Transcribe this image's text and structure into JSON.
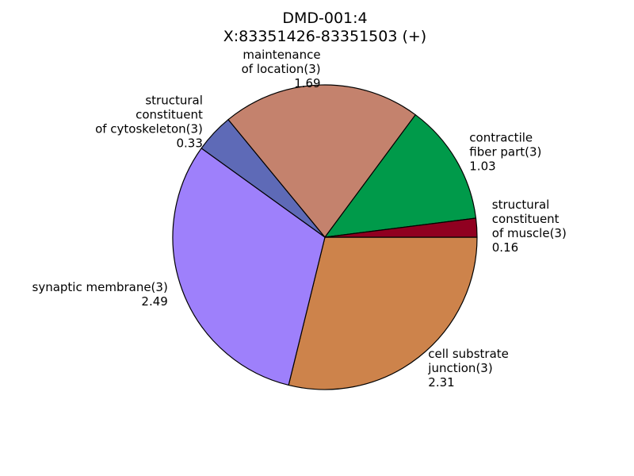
{
  "chart_data": {
    "type": "pie",
    "title_lines": [
      "DMD-001:4",
      "X:83351426-83351503 (+)"
    ],
    "slices": [
      {
        "label_lines": [
          "cell substrate",
          "junction(3)"
        ],
        "value": 2.31,
        "value_text": "2.31",
        "color": "#cd834b"
      },
      {
        "label_lines": [
          "synaptic membrane(3)"
        ],
        "value": 2.49,
        "value_text": "2.49",
        "color": "#9e80fb"
      },
      {
        "label_lines": [
          "structural",
          "constituent",
          "of cytoskeleton(3)"
        ],
        "value": 0.33,
        "value_text": "0.33",
        "color": "#5e6ab7"
      },
      {
        "label_lines": [
          "maintenance",
          "of location(3)"
        ],
        "value": 1.69,
        "value_text": "1.69",
        "color": "#c4826d"
      },
      {
        "label_lines": [
          "contractile",
          "fiber part(3)"
        ],
        "value": 1.03,
        "value_text": "1.03",
        "color": "#009a4a"
      },
      {
        "label_lines": [
          "structural",
          "constituent",
          "of muscle(3)"
        ],
        "value": 0.16,
        "value_text": "0.16",
        "color": "#900020"
      }
    ],
    "start_angle_deg": 0,
    "direction": "clockwise",
    "legend": "none"
  }
}
